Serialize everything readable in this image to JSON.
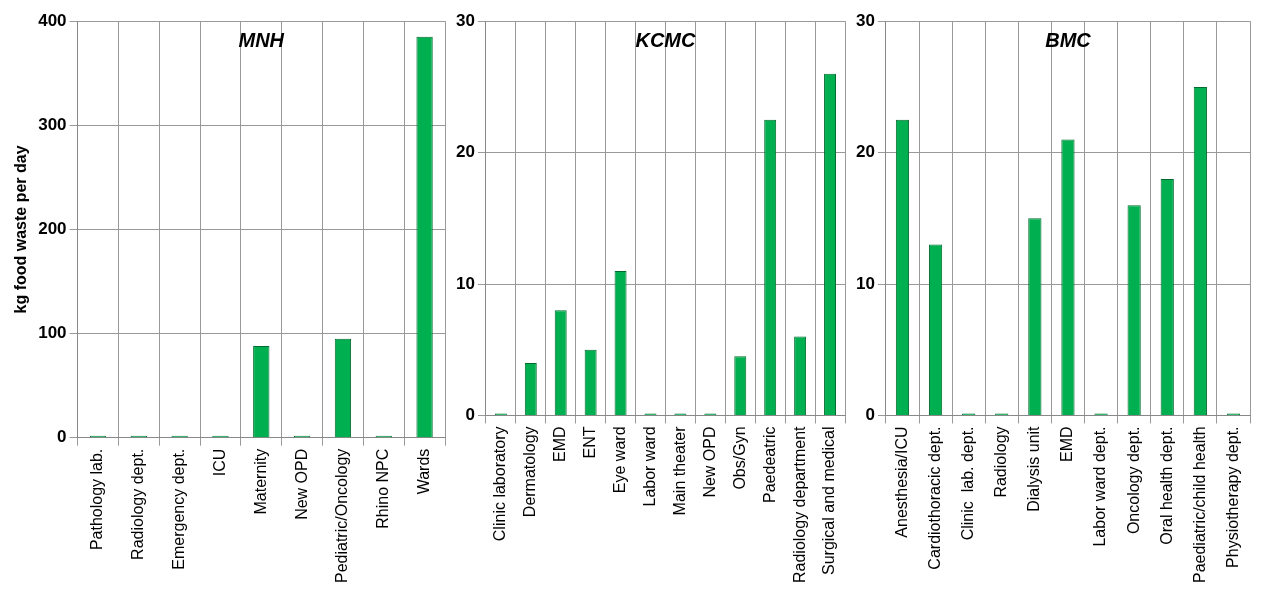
{
  "chart_data": [
    {
      "type": "bar",
      "title": "MNH",
      "ylabel": "kg food waste per day",
      "categories": [
        "Pathology lab.",
        "Radiology dept.",
        "Emergency dept.",
        "ICU",
        "Maternity",
        "New OPD",
        "Pediatric/Oncology",
        "Rhino NPC",
        "Wards"
      ],
      "values": [
        0,
        0,
        0,
        0,
        88,
        0,
        95,
        0,
        385
      ],
      "color": "#00b050",
      "ylim": [
        0,
        400
      ],
      "yticks": [
        0,
        100,
        200,
        300,
        400
      ],
      "grid": true
    },
    {
      "type": "bar",
      "title": "KCMC",
      "categories": [
        "Clinic laboratory",
        "Dermatology",
        "EMD",
        "ENT",
        "Eye ward",
        "Labor ward",
        "Main theater",
        "New OPD",
        "Obs/Gyn",
        "Paedeatric",
        "Radiology department",
        "Surgical and medical"
      ],
      "values": [
        0,
        4,
        8,
        5,
        11,
        0,
        0,
        0,
        4.5,
        22.5,
        6,
        26
      ],
      "color": "#00b050",
      "ylim": [
        0,
        30
      ],
      "yticks": [
        0,
        10,
        20,
        30
      ],
      "grid": true
    },
    {
      "type": "bar",
      "title": "BMC",
      "categories": [
        "Anesthesia/ICU",
        "Cardiothoracic dept.",
        "Clinic  lab. dept.",
        "Radiology",
        "Dialysis unit",
        "EMD",
        "Labor ward dept.",
        "Oncology dept.",
        "Oral health dept.",
        "Paediatric/child health",
        "Physiotherapy dept."
      ],
      "values": [
        22.5,
        13,
        0,
        0,
        15,
        21,
        0,
        16,
        18,
        25,
        0
      ],
      "color": "#00b050",
      "ylim": [
        0,
        30
      ],
      "yticks": [
        0,
        10,
        20,
        30
      ],
      "grid": true
    }
  ]
}
